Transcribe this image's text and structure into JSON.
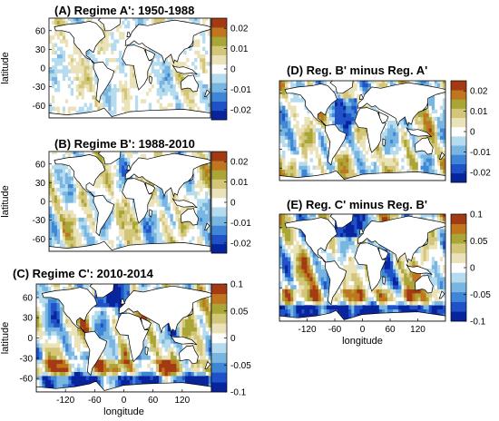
{
  "figure": {
    "xlabel": "longitude",
    "ylabel": "latitude"
  },
  "chart_data": [
    {
      "id": "A",
      "type": "heatmap",
      "title": "(A)  Regime A': 1950-1988",
      "xlim": [
        -180,
        180
      ],
      "ylim": [
        -80,
        80
      ],
      "xticks": [],
      "yticks": [
        -60,
        -30,
        0,
        30,
        60
      ],
      "show_xlabel": false,
      "show_ylabel": true,
      "clim": [
        -0.025,
        0.025
      ],
      "colorbar_ticks": [
        0.02,
        0.01,
        0,
        -0.01,
        -0.02
      ],
      "colorbar_tick_labels": [
        "0.02",
        "0.01",
        "0",
        "-0.01",
        "-0.02"
      ],
      "intensity": 0.45
    },
    {
      "id": "B",
      "type": "heatmap",
      "title": "(B)  Regime B': 1988-2010",
      "xlim": [
        -180,
        180
      ],
      "ylim": [
        -80,
        80
      ],
      "xticks": [],
      "yticks": [
        -60,
        -30,
        0,
        30,
        60
      ],
      "show_xlabel": false,
      "show_ylabel": true,
      "clim": [
        -0.025,
        0.025
      ],
      "colorbar_ticks": [
        0.02,
        0.01,
        0,
        -0.01,
        -0.02
      ],
      "colorbar_tick_labels": [
        "0.02",
        "0.01",
        "0",
        "-0.01",
        "-0.02"
      ],
      "intensity": 0.75
    },
    {
      "id": "C",
      "type": "heatmap",
      "title": "(C)  Regime C': 2010-2014",
      "xlim": [
        -180,
        180
      ],
      "ylim": [
        -80,
        80
      ],
      "xticks": [
        -120,
        -60,
        0,
        60,
        120
      ],
      "yticks": [
        -60,
        -30,
        0,
        30,
        60
      ],
      "show_xlabel": true,
      "show_ylabel": true,
      "clim": [
        -0.1,
        0.1
      ],
      "colorbar_ticks": [
        0.1,
        0.05,
        0,
        -0.05,
        -0.1
      ],
      "colorbar_tick_labels": [
        "0.1",
        "0.05",
        "0",
        "-0.05",
        "-0.1"
      ],
      "intensity": 1.0
    },
    {
      "id": "D",
      "type": "heatmap",
      "title": "(D)  Reg. B' minus Reg. A'",
      "xlim": [
        -180,
        180
      ],
      "ylim": [
        -80,
        80
      ],
      "xticks": [],
      "yticks": [
        -60,
        -30,
        0,
        30,
        60
      ],
      "show_xlabel": false,
      "show_ylabel": false,
      "clim": [
        -0.025,
        0.025
      ],
      "colorbar_ticks": [
        0.02,
        0.01,
        0,
        -0.01,
        -0.02
      ],
      "colorbar_tick_labels": [
        "0.02",
        "0.01",
        "0",
        "-0.01",
        "-0.02"
      ],
      "intensity": 0.85
    },
    {
      "id": "E",
      "type": "heatmap",
      "title": "(E)  Reg. C' minus Reg. B'",
      "xlim": [
        -180,
        180
      ],
      "ylim": [
        -80,
        80
      ],
      "xticks": [
        -120,
        -60,
        0,
        60,
        120
      ],
      "yticks": [
        -60,
        -30,
        0,
        30,
        60
      ],
      "show_xlabel": true,
      "show_ylabel": false,
      "clim": [
        -0.1,
        0.1
      ],
      "colorbar_ticks": [
        0.1,
        0.05,
        0,
        -0.05,
        -0.1
      ],
      "colorbar_tick_labels": [
        "0.1",
        "0.05",
        "0",
        "-0.05",
        "-0.1"
      ],
      "intensity": 1.0
    }
  ],
  "colormap": [
    "#08249c",
    "#1f52c8",
    "#3f87d6",
    "#78b5e0",
    "#b4dbee",
    "#ffffff",
    "#eae2b8",
    "#d3c679",
    "#a9a637",
    "#c0751f",
    "#a33a14"
  ]
}
